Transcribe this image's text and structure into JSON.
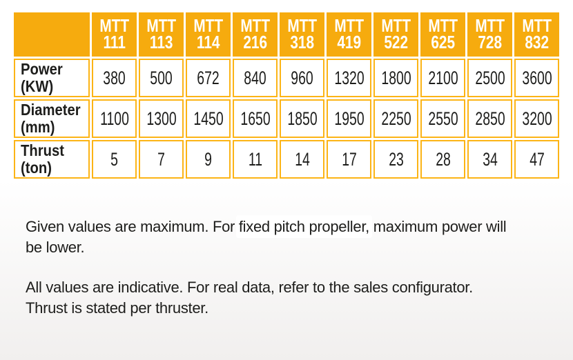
{
  "colors": {
    "header_bg": "#F6AB0E",
    "cell_border": "#FCB415",
    "header_text": "#FFFFFF",
    "body_text": "#1D1D1B"
  },
  "table": {
    "corner_label": "",
    "columns": [
      {
        "line1": "MTT",
        "line2": "111"
      },
      {
        "line1": "MTT",
        "line2": "113"
      },
      {
        "line1": "MTT",
        "line2": "114"
      },
      {
        "line1": "MTT",
        "line2": "216"
      },
      {
        "line1": "MTT",
        "line2": "318"
      },
      {
        "line1": "MTT",
        "line2": "419"
      },
      {
        "line1": "MTT",
        "line2": "522"
      },
      {
        "line1": "MTT",
        "line2": "625"
      },
      {
        "line1": "MTT",
        "line2": "728"
      },
      {
        "line1": "MTT",
        "line2": "832"
      }
    ],
    "rows": [
      {
        "label_line1": "Power",
        "label_line2": "(KW)",
        "values": [
          "380",
          "500",
          "672",
          "840",
          "960",
          "1320",
          "1800",
          "2100",
          "2500",
          "3600"
        ]
      },
      {
        "label_line1": "Diameter",
        "label_line2": "(mm)",
        "values": [
          "1100",
          "1300",
          "1450",
          "1650",
          "1850",
          "1950",
          "2250",
          "2550",
          "2850",
          "3200"
        ]
      },
      {
        "label_line1": "Thrust",
        "label_line2": "(ton)",
        "values": [
          "5",
          "7",
          "9",
          "11",
          "14",
          "17",
          "23",
          "28",
          "34",
          "47"
        ]
      }
    ]
  },
  "notes": [
    {
      "lines": [
        [
          {
            "text": "Given values are maximum. For "
          },
          {
            "text": "fixed pitch propeller,",
            "highlight": true
          },
          {
            "text": " maximum power will"
          }
        ],
        [
          {
            "text": "be lower."
          }
        ]
      ]
    },
    {
      "lines": [
        [
          {
            "text": "All values are indicative. For real data, refer to the sales configurator."
          }
        ],
        [
          {
            "text": "Thrust is stated per thruster."
          }
        ]
      ]
    }
  ]
}
